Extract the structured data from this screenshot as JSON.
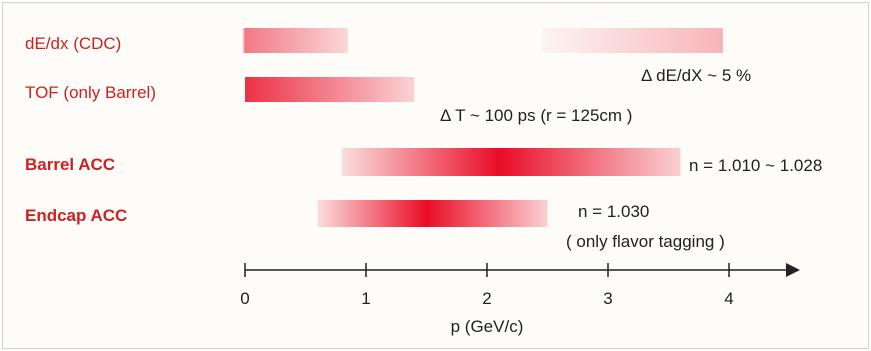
{
  "chart_data": {
    "type": "bar",
    "subtype": "range-gradient",
    "title": "",
    "xlabel": "p (GeV/c)",
    "ylabel": "",
    "xlim": [
      0,
      4.4
    ],
    "xticks": [
      0,
      1,
      2,
      3,
      4
    ],
    "grid": false,
    "legend": "none",
    "series": [
      {
        "name": "dE/dx (CDC)",
        "label_bold": false,
        "segments": [
          {
            "start": -0.02,
            "end": 0.85,
            "peak": 0.0
          },
          {
            "start": 2.45,
            "end": 3.95,
            "peak": 3.95
          }
        ],
        "intensity": [
          0.55,
          0.25
        ],
        "annotations": [
          "Δ dE/dX ~ 5 %"
        ]
      },
      {
        "name": "TOF (only Barrel)",
        "label_bold": false,
        "segments": [
          {
            "start": 0.0,
            "end": 1.4,
            "peak": 0.0
          }
        ],
        "intensity": [
          0.85
        ],
        "annotations": [
          "Δ T ~ 100 ps (r = 125cm )"
        ]
      },
      {
        "name": "Barrel ACC",
        "label_bold": true,
        "segments": [
          {
            "start": 0.8,
            "end": 3.6,
            "peak": 2.1
          }
        ],
        "intensity": [
          1.0
        ],
        "annotations": [
          "n = 1.010 ~ 1.028"
        ]
      },
      {
        "name": "Endcap ACC",
        "label_bold": true,
        "segments": [
          {
            "start": 0.6,
            "end": 2.5,
            "peak": 1.5
          }
        ],
        "intensity": [
          1.0
        ],
        "annotations": [
          "n = 1.030",
          "( only flavor tagging )"
        ]
      }
    ]
  },
  "colors": {
    "bar": "#e8001c",
    "bar_fade": "#ffffff",
    "label": "#cc2222",
    "axis": "#222222",
    "frame_bg": "#fdfcf9"
  }
}
